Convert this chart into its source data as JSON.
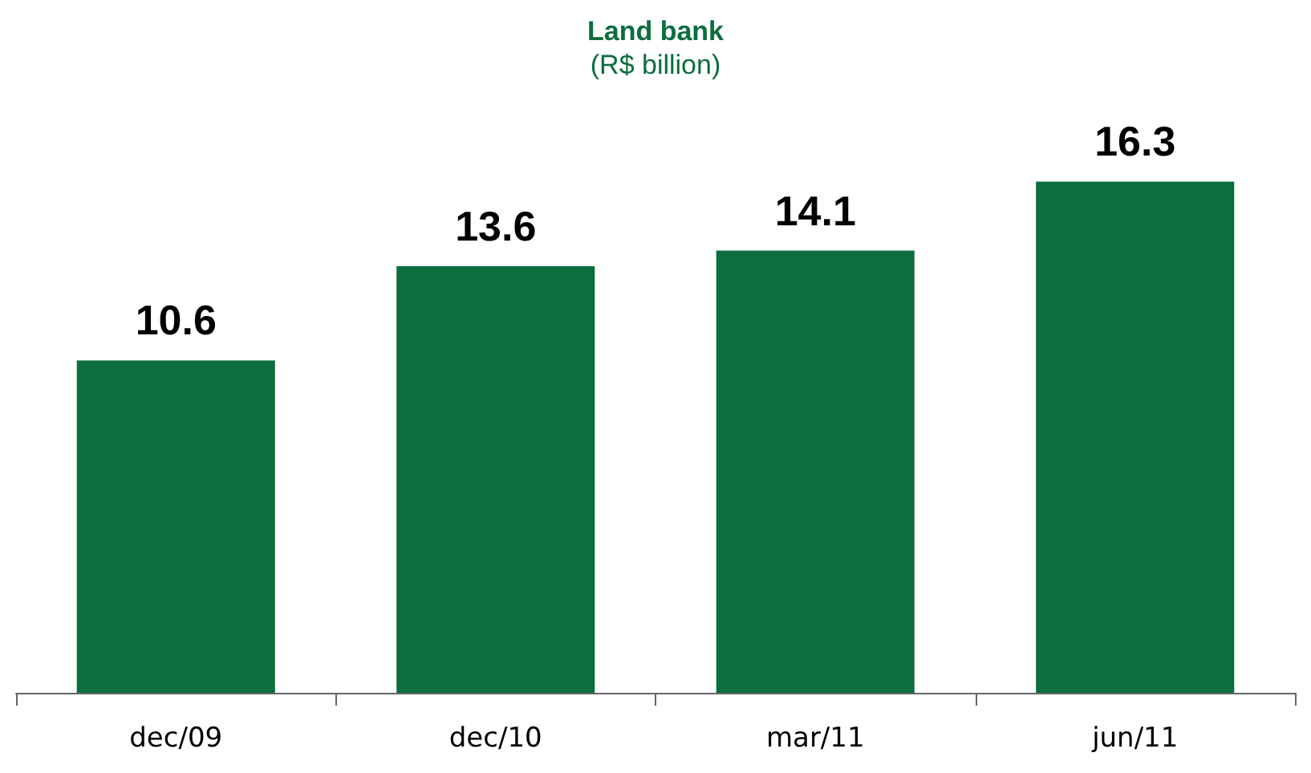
{
  "chart_data": {
    "type": "bar",
    "title": "Land bank",
    "subtitle": "(R$ billion)",
    "categories": [
      "dec/09",
      "dec/10",
      "mar/11",
      "jun/11"
    ],
    "values": [
      10.6,
      13.6,
      14.1,
      16.3
    ],
    "color": "#0b6e3c",
    "data_labels": true
  }
}
